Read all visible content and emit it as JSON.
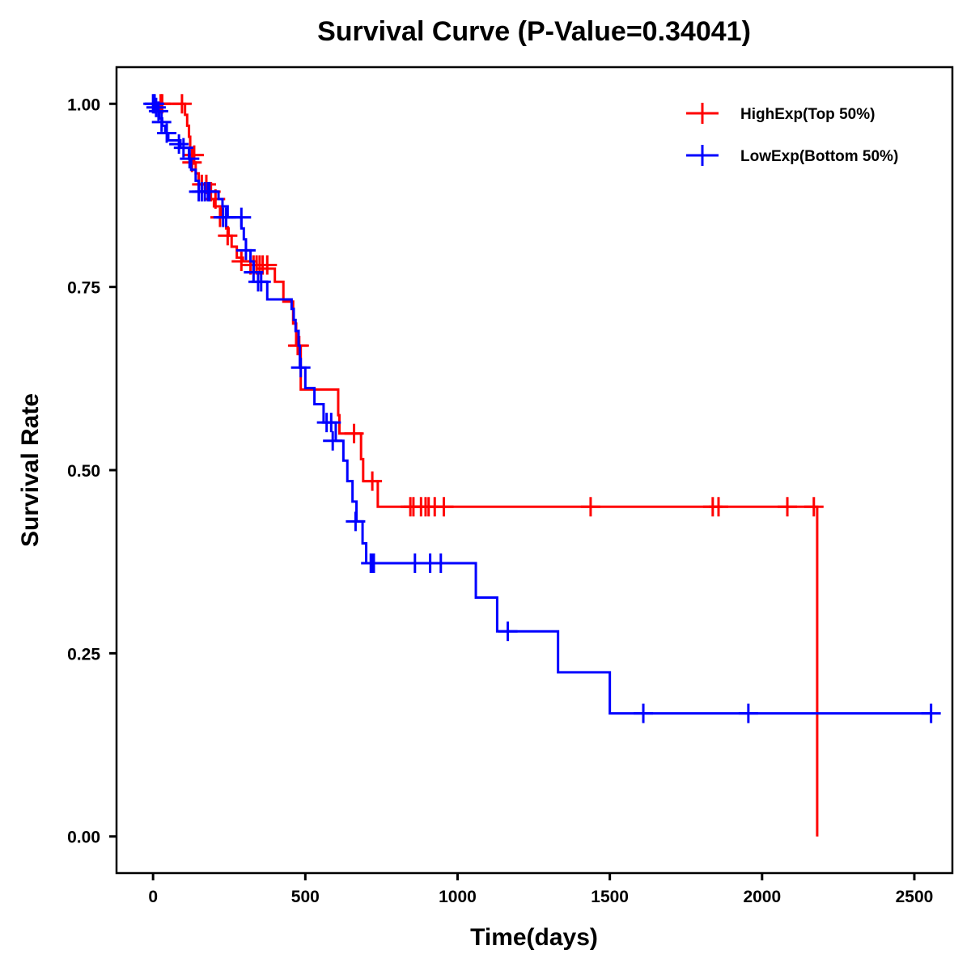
{
  "chart_data": {
    "type": "line",
    "subtype": "kaplan-meier-step",
    "title": "Survival Curve (P-Value=0.34041)",
    "xlabel": "Time(days)",
    "ylabel": "Survival Rate",
    "xlim": [
      -120,
      2625
    ],
    "ylim": [
      -0.05,
      1.05
    ],
    "xticks": [
      0,
      500,
      1000,
      1500,
      2000,
      2500
    ],
    "xtick_labels": [
      "0",
      "500",
      "1000",
      "1500",
      "2000",
      "2500"
    ],
    "yticks": [
      0,
      0.25,
      0.5,
      0.75,
      1.0
    ],
    "ytick_labels": [
      "0.00",
      "0.25",
      "0.50",
      "0.75",
      "1.00"
    ],
    "grid": false,
    "legend_position": "top-right",
    "series": [
      {
        "name": "HighExp(Top 50%)",
        "color": "#ff0000",
        "steps": [
          [
            0,
            1.0
          ],
          [
            105,
            0.985
          ],
          [
            112,
            0.97
          ],
          [
            118,
            0.955
          ],
          [
            122,
            0.94
          ],
          [
            128,
            0.92
          ],
          [
            140,
            0.905
          ],
          [
            150,
            0.89
          ],
          [
            170,
            0.88
          ],
          [
            185,
            0.87
          ],
          [
            200,
            0.86
          ],
          [
            225,
            0.845
          ],
          [
            240,
            0.83
          ],
          [
            248,
            0.82
          ],
          [
            258,
            0.805
          ],
          [
            275,
            0.79
          ],
          [
            295,
            0.785
          ],
          [
            340,
            0.775
          ],
          [
            400,
            0.757
          ],
          [
            428,
            0.73
          ],
          [
            460,
            0.7
          ],
          [
            470,
            0.67
          ],
          [
            485,
            0.61
          ],
          [
            608,
            0.575
          ],
          [
            612,
            0.55
          ],
          [
            683,
            0.515
          ],
          [
            690,
            0.485
          ],
          [
            738,
            0.45
          ],
          [
            2181,
            0.0
          ]
        ],
        "end_time": 2181,
        "censored": [
          [
            25,
            1.0
          ],
          [
            30,
            1.0
          ],
          [
            95,
            1.0
          ],
          [
            128,
            0.92
          ],
          [
            135,
            0.93
          ],
          [
            160,
            0.89
          ],
          [
            175,
            0.89
          ],
          [
            190,
            0.88
          ],
          [
            205,
            0.87
          ],
          [
            220,
            0.845
          ],
          [
            245,
            0.82
          ],
          [
            290,
            0.785
          ],
          [
            320,
            0.78
          ],
          [
            330,
            0.78
          ],
          [
            340,
            0.78
          ],
          [
            350,
            0.78
          ],
          [
            360,
            0.78
          ],
          [
            375,
            0.78
          ],
          [
            475,
            0.67
          ],
          [
            480,
            0.67
          ],
          [
            660,
            0.55
          ],
          [
            720,
            0.485
          ],
          [
            845,
            0.45
          ],
          [
            855,
            0.45
          ],
          [
            880,
            0.45
          ],
          [
            895,
            0.45
          ],
          [
            905,
            0.45
          ],
          [
            925,
            0.45
          ],
          [
            955,
            0.45
          ],
          [
            1437,
            0.45
          ],
          [
            1838,
            0.45
          ],
          [
            1857,
            0.45
          ],
          [
            2083,
            0.45
          ],
          [
            2170,
            0.45
          ]
        ]
      },
      {
        "name": "LowExp(Bottom 50%)",
        "color": "#0000ff",
        "steps": [
          [
            0,
            1.0
          ],
          [
            12,
            0.99
          ],
          [
            20,
            0.98
          ],
          [
            30,
            0.97
          ],
          [
            40,
            0.96
          ],
          [
            50,
            0.95
          ],
          [
            90,
            0.94
          ],
          [
            118,
            0.925
          ],
          [
            125,
            0.91
          ],
          [
            140,
            0.895
          ],
          [
            150,
            0.88
          ],
          [
            215,
            0.87
          ],
          [
            228,
            0.86
          ],
          [
            245,
            0.845
          ],
          [
            290,
            0.83
          ],
          [
            298,
            0.815
          ],
          [
            305,
            0.8
          ],
          [
            320,
            0.785
          ],
          [
            330,
            0.77
          ],
          [
            345,
            0.757
          ],
          [
            375,
            0.733
          ],
          [
            455,
            0.72
          ],
          [
            462,
            0.705
          ],
          [
            468,
            0.69
          ],
          [
            478,
            0.67
          ],
          [
            482,
            0.64
          ],
          [
            500,
            0.612
          ],
          [
            530,
            0.59
          ],
          [
            560,
            0.565
          ],
          [
            600,
            0.54
          ],
          [
            625,
            0.513
          ],
          [
            638,
            0.485
          ],
          [
            655,
            0.457
          ],
          [
            668,
            0.43
          ],
          [
            688,
            0.4
          ],
          [
            700,
            0.373
          ],
          [
            1060,
            0.326
          ],
          [
            1130,
            0.28
          ],
          [
            1330,
            0.224
          ],
          [
            1500,
            0.168
          ]
        ],
        "end_time": 2555,
        "censored": [
          [
            0,
            1.0
          ],
          [
            5,
            1.0
          ],
          [
            10,
            0.995
          ],
          [
            18,
            0.99
          ],
          [
            28,
            0.975
          ],
          [
            45,
            0.96
          ],
          [
            85,
            0.945
          ],
          [
            100,
            0.94
          ],
          [
            120,
            0.925
          ],
          [
            150,
            0.88
          ],
          [
            160,
            0.88
          ],
          [
            170,
            0.88
          ],
          [
            180,
            0.88
          ],
          [
            185,
            0.88
          ],
          [
            230,
            0.845
          ],
          [
            240,
            0.845
          ],
          [
            290,
            0.845
          ],
          [
            305,
            0.8
          ],
          [
            330,
            0.77
          ],
          [
            345,
            0.757
          ],
          [
            355,
            0.757
          ],
          [
            485,
            0.64
          ],
          [
            570,
            0.565
          ],
          [
            585,
            0.565
          ],
          [
            590,
            0.54
          ],
          [
            665,
            0.43
          ],
          [
            715,
            0.373
          ],
          [
            720,
            0.373
          ],
          [
            725,
            0.373
          ],
          [
            860,
            0.373
          ],
          [
            910,
            0.373
          ],
          [
            945,
            0.373
          ],
          [
            1165,
            0.28
          ],
          [
            1610,
            0.168
          ],
          [
            1955,
            0.168
          ],
          [
            2555,
            0.168
          ]
        ]
      }
    ]
  }
}
